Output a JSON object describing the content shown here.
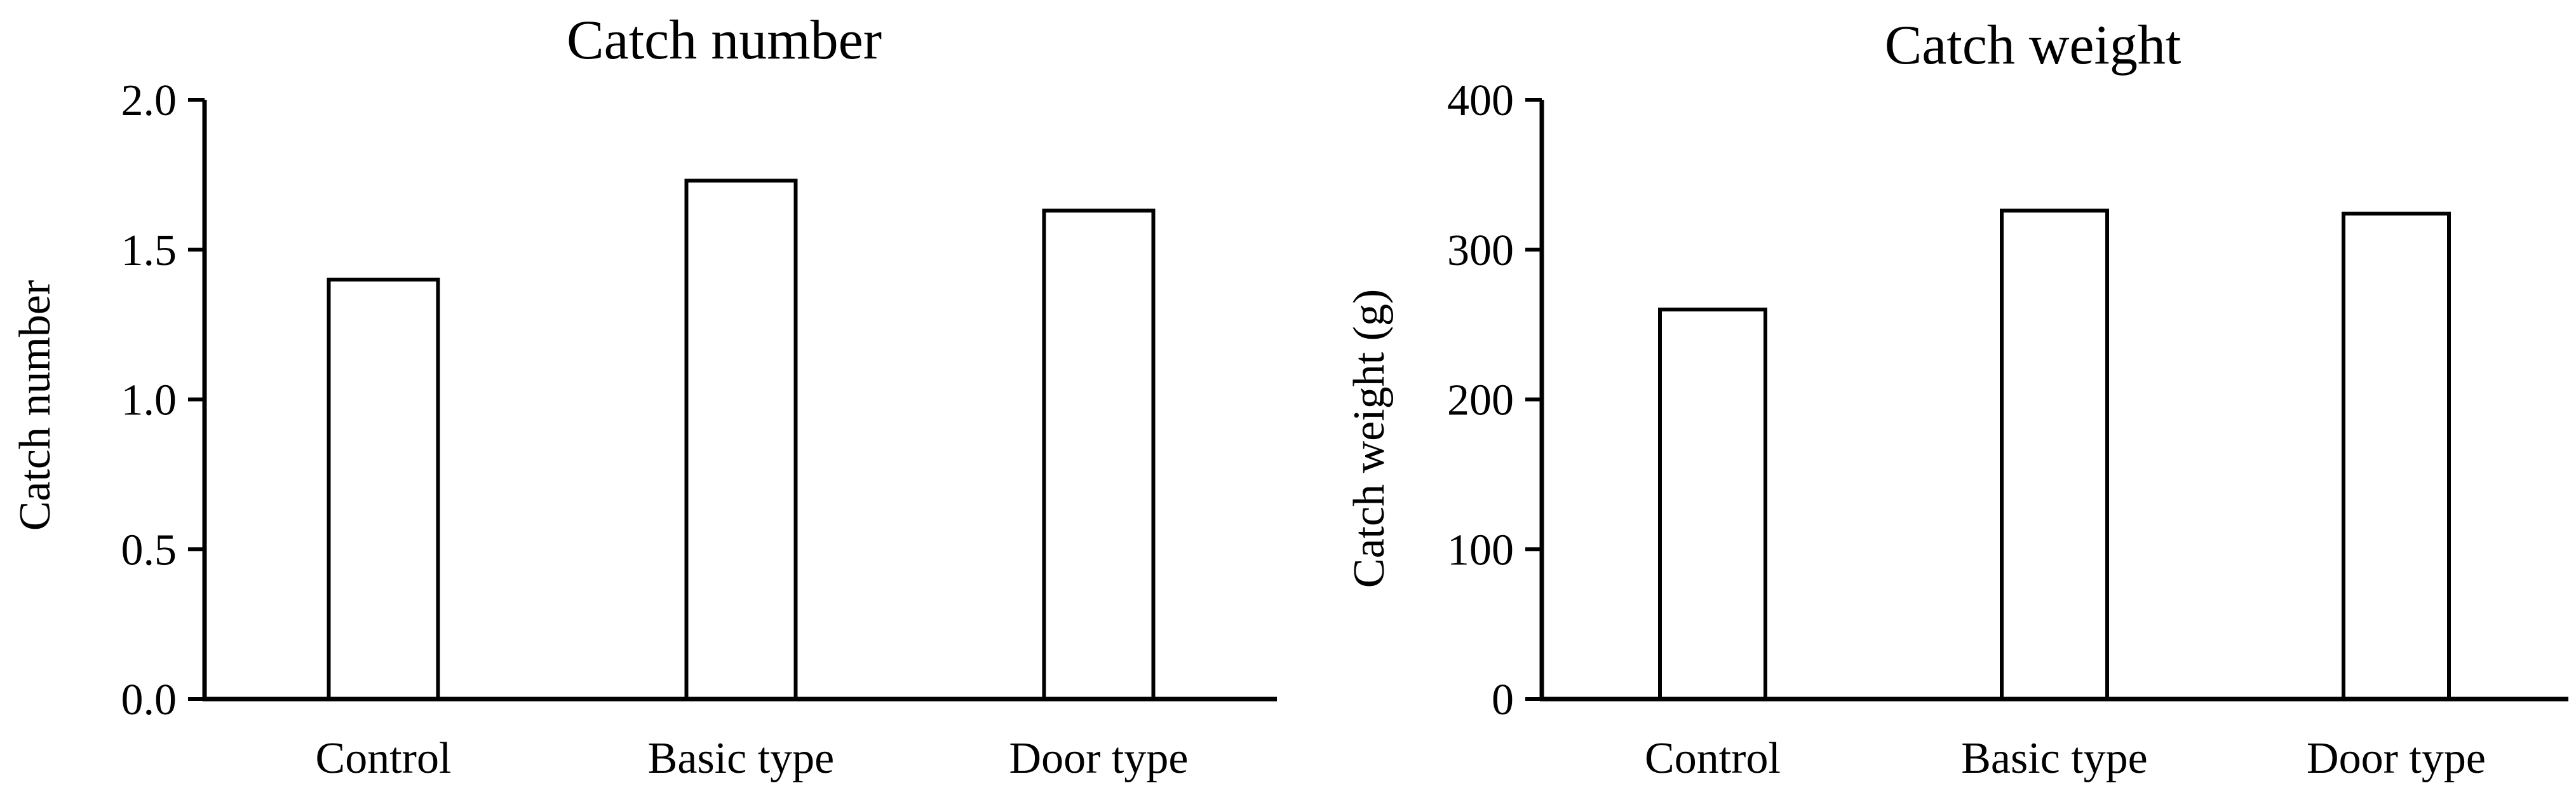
{
  "chart_data": [
    {
      "type": "bar",
      "title": "Catch number",
      "xlabel": "",
      "ylabel": "Catch number",
      "categories": [
        "Control",
        "Basic type",
        "Door type"
      ],
      "values": [
        1.4,
        1.73,
        1.63
      ],
      "ylim": [
        0,
        2.0
      ],
      "yticks": [
        "0.0",
        "0.5",
        "1.0",
        "1.5",
        "2.0"
      ],
      "grid": false,
      "legend": "none",
      "bar_fill": "#ffffff",
      "bar_stroke": "#000000"
    },
    {
      "type": "bar",
      "title": "Catch weight",
      "xlabel": "",
      "ylabel": "Catch weight (g)",
      "categories": [
        "Control",
        "Basic type",
        "Door type"
      ],
      "values": [
        260,
        326,
        324
      ],
      "ylim": [
        0,
        400
      ],
      "yticks": [
        "0",
        "100",
        "200",
        "300",
        "400"
      ],
      "grid": false,
      "legend": "none",
      "bar_fill": "#ffffff",
      "bar_stroke": "#000000"
    }
  ]
}
